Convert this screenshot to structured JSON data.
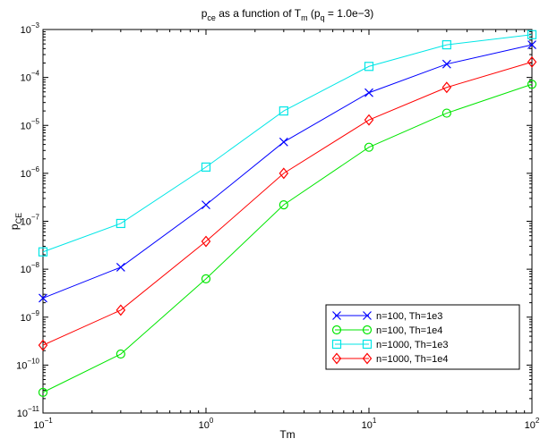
{
  "chart_data": {
    "type": "line",
    "title": {
      "parts": [
        {
          "text": "p",
          "style": "normal"
        },
        {
          "text": "ce",
          "style": "sub"
        },
        {
          "text": " as a function of T",
          "style": "normal"
        },
        {
          "text": "m",
          "style": "sub"
        },
        {
          "text": " (p",
          "style": "normal"
        },
        {
          "text": "q",
          "style": "sub"
        },
        {
          "text": " = 1.0e−3)",
          "style": "normal"
        }
      ]
    },
    "xlabel": "Tm",
    "ylabel": {
      "parts": [
        {
          "text": "p",
          "style": "normal"
        },
        {
          "text": "CE",
          "style": "sub"
        }
      ]
    },
    "xscale": "log",
    "yscale": "log",
    "xlim": [
      0.1,
      100
    ],
    "ylim": [
      1e-11,
      0.001
    ],
    "xticks": [
      {
        "value": 0.1,
        "base": "10",
        "exp": "−1"
      },
      {
        "value": 1,
        "base": "10",
        "exp": "0"
      },
      {
        "value": 10,
        "base": "10",
        "exp": "1"
      },
      {
        "value": 100,
        "base": "10",
        "exp": "2"
      }
    ],
    "yticks": [
      {
        "value": 1e-11,
        "base": "10",
        "exp": "−11"
      },
      {
        "value": 1e-10,
        "base": "10",
        "exp": "−10"
      },
      {
        "value": 1e-09,
        "base": "10",
        "exp": "−9"
      },
      {
        "value": 1e-08,
        "base": "10",
        "exp": "−8"
      },
      {
        "value": 1e-07,
        "base": "10",
        "exp": "−7"
      },
      {
        "value": 1e-06,
        "base": "10",
        "exp": "−6"
      },
      {
        "value": 1e-05,
        "base": "10",
        "exp": "−5"
      },
      {
        "value": 0.0001,
        "base": "10",
        "exp": "−4"
      },
      {
        "value": 0.001,
        "base": "10",
        "exp": "−3"
      }
    ],
    "grid": false,
    "legend_position": "bottom-right",
    "x": [
      0.1,
      0.3,
      1,
      3,
      10,
      30,
      100
    ],
    "series": [
      {
        "name": "n=100, Th=1e3",
        "color": "#0000ff",
        "marker": "x",
        "values": [
          2.5e-09,
          1.1e-08,
          2.2e-07,
          4.5e-06,
          4.8e-05,
          0.00019,
          0.00048
        ]
      },
      {
        "name": "n=100, Th=1e4",
        "color": "#00e600",
        "marker": "circle",
        "values": [
          2.7e-11,
          1.7e-10,
          6.3e-09,
          2.2e-07,
          3.5e-06,
          1.8e-05,
          7.2e-05
        ]
      },
      {
        "name": "n=1000, Th=1e3",
        "color": "#00e6e6",
        "marker": "square",
        "values": [
          2.3e-08,
          9e-08,
          1.35e-06,
          2e-05,
          0.00017,
          0.00048,
          0.00078
        ]
      },
      {
        "name": "n=1000, Th=1e4",
        "color": "#ff0000",
        "marker": "diamond",
        "values": [
          2.6e-10,
          1.4e-09,
          3.8e-08,
          1e-06,
          1.3e-05,
          6.2e-05,
          0.00021
        ]
      }
    ]
  }
}
